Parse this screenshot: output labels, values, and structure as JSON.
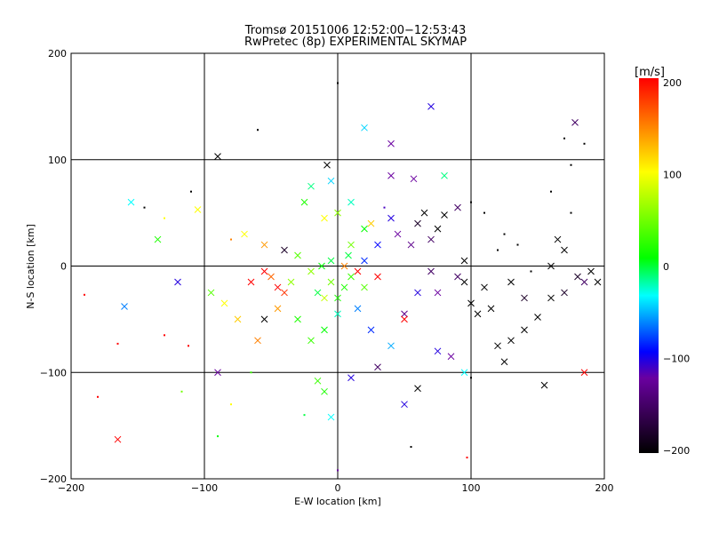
{
  "chart_data": {
    "type": "scatter",
    "title": "Tromsø 20151006 12:52:00−12:53:43",
    "subtitle": "RwPretec (8p) EXPERIMENTAL SKYMAP",
    "xlabel": "E-W location [km]",
    "ylabel": "N-S location [km]",
    "xlim": [
      -200,
      200
    ],
    "ylim": [
      -200,
      200
    ],
    "xticks": [
      "−200",
      "−100",
      "0",
      "100",
      "200"
    ],
    "yticks": [
      "−200",
      "−100",
      "0",
      "100",
      "200"
    ],
    "grid": true,
    "colorbar": {
      "label": "[m/s]",
      "range": [
        -200,
        200
      ],
      "ticks": [
        "200",
        "100",
        "0",
        "−100",
        "−200"
      ],
      "colors": [
        "#000000",
        "#6a00a0",
        "#0000ff",
        "#00ffff",
        "#00ff00",
        "#ffff00",
        "#ff0000"
      ]
    },
    "point_format": "[x_km, y_km, velocity_m_s, marker(1=cross,0=dot)]",
    "points": [
      [
        -165,
        -163,
        200,
        1
      ],
      [
        -160,
        -38,
        -60,
        1
      ],
      [
        -155,
        60,
        -30,
        1
      ],
      [
        -135,
        25,
        20,
        1
      ],
      [
        -120,
        -15,
        -100,
        1
      ],
      [
        -105,
        53,
        100,
        1
      ],
      [
        -90,
        103,
        -200,
        1
      ],
      [
        70,
        150,
        -100,
        1
      ],
      [
        40,
        115,
        -120,
        1
      ],
      [
        20,
        130,
        -40,
        1
      ],
      [
        -60,
        128,
        -200,
        0
      ],
      [
        0,
        172,
        -200,
        0
      ],
      [
        178,
        135,
        -150,
        1
      ],
      [
        185,
        -100,
        200,
        1
      ],
      [
        -190,
        -27,
        200,
        0
      ],
      [
        -180,
        -123,
        200,
        0
      ],
      [
        -165,
        -73,
        200,
        0
      ],
      [
        -130,
        -65,
        200,
        0
      ],
      [
        -112,
        -75,
        200,
        0
      ],
      [
        -117,
        -118,
        50,
        0
      ],
      [
        -80,
        -130,
        100,
        0
      ],
      [
        -90,
        -160,
        10,
        0
      ],
      [
        97,
        -180,
        200,
        0
      ],
      [
        0,
        -192,
        -120,
        0
      ],
      [
        55,
        -170,
        -200,
        0
      ],
      [
        -25,
        -140,
        0,
        0
      ],
      [
        -5,
        -142,
        -30,
        1
      ],
      [
        -10,
        -118,
        20,
        1
      ],
      [
        -15,
        -108,
        30,
        1
      ],
      [
        10,
        -105,
        -100,
        1
      ],
      [
        30,
        -95,
        -150,
        1
      ],
      [
        50,
        -130,
        -100,
        1
      ],
      [
        60,
        -115,
        -200,
        1
      ],
      [
        95,
        -100,
        -30,
        1
      ],
      [
        85,
        -85,
        -120,
        1
      ],
      [
        75,
        -80,
        -100,
        1
      ],
      [
        100,
        -105,
        -200,
        0
      ],
      [
        155,
        -112,
        -200,
        1
      ],
      [
        130,
        -70,
        -200,
        1
      ],
      [
        120,
        -75,
        -200,
        1
      ],
      [
        125,
        -90,
        -200,
        1
      ],
      [
        140,
        -60,
        -200,
        1
      ],
      [
        150,
        -48,
        -200,
        1
      ],
      [
        160,
        -30,
        -200,
        1
      ],
      [
        170,
        -25,
        -180,
        1
      ],
      [
        195,
        -15,
        -200,
        1
      ],
      [
        190,
        -5,
        -200,
        1
      ],
      [
        180,
        -10,
        -180,
        1
      ],
      [
        185,
        -15,
        -150,
        1
      ],
      [
        110,
        -20,
        -200,
        1
      ],
      [
        115,
        -40,
        -200,
        1
      ],
      [
        105,
        -45,
        -200,
        1
      ],
      [
        95,
        -15,
        -200,
        1
      ],
      [
        100,
        -35,
        -200,
        1
      ],
      [
        90,
        -10,
        -150,
        1
      ],
      [
        75,
        -25,
        -120,
        1
      ],
      [
        70,
        -5,
        -150,
        1
      ],
      [
        95,
        5,
        -200,
        1
      ],
      [
        120,
        15,
        -200,
        0
      ],
      [
        135,
        20,
        -200,
        0
      ],
      [
        145,
        -5,
        -200,
        0
      ],
      [
        160,
        0,
        -200,
        1
      ],
      [
        170,
        15,
        -200,
        1
      ],
      [
        175,
        50,
        -200,
        0
      ],
      [
        165,
        25,
        -200,
        1
      ],
      [
        140,
        -30,
        -180,
        1
      ],
      [
        130,
        -15,
        -200,
        1
      ],
      [
        125,
        30,
        -200,
        0
      ],
      [
        110,
        50,
        -200,
        0
      ],
      [
        100,
        60,
        -200,
        0
      ],
      [
        90,
        55,
        -150,
        1
      ],
      [
        80,
        48,
        -200,
        1
      ],
      [
        75,
        35,
        -200,
        1
      ],
      [
        65,
        50,
        -200,
        1
      ],
      [
        60,
        40,
        -180,
        1
      ],
      [
        70,
        25,
        -150,
        1
      ],
      [
        55,
        20,
        -130,
        1
      ],
      [
        45,
        30,
        -120,
        1
      ],
      [
        40,
        45,
        -100,
        1
      ],
      [
        35,
        55,
        -110,
        0
      ],
      [
        30,
        20,
        -90,
        1
      ],
      [
        20,
        5,
        -80,
        1
      ],
      [
        10,
        -10,
        30,
        1
      ],
      [
        5,
        -20,
        20,
        1
      ],
      [
        -5,
        -15,
        50,
        1
      ],
      [
        -10,
        -30,
        80,
        1
      ],
      [
        -20,
        -5,
        60,
        1
      ],
      [
        -30,
        10,
        40,
        1
      ],
      [
        -40,
        15,
        -180,
        1
      ],
      [
        -45,
        -40,
        140,
        1
      ],
      [
        -55,
        -50,
        -200,
        1
      ],
      [
        -60,
        -70,
        150,
        1
      ],
      [
        -75,
        -50,
        120,
        1
      ],
      [
        -85,
        -35,
        100,
        1
      ],
      [
        -95,
        -25,
        40,
        1
      ],
      [
        -80,
        25,
        150,
        0
      ],
      [
        -70,
        30,
        100,
        1
      ],
      [
        -55,
        20,
        140,
        1
      ],
      [
        -50,
        -10,
        160,
        1
      ],
      [
        -40,
        -25,
        180,
        1
      ],
      [
        -30,
        -50,
        20,
        1
      ],
      [
        -20,
        -70,
        30,
        1
      ],
      [
        -10,
        -60,
        10,
        1
      ],
      [
        0,
        -45,
        -20,
        1
      ],
      [
        15,
        -40,
        -60,
        1
      ],
      [
        25,
        -60,
        -80,
        1
      ],
      [
        40,
        -75,
        -50,
        1
      ],
      [
        50,
        -45,
        -130,
        1
      ],
      [
        60,
        -25,
        -100,
        1
      ],
      [
        10,
        20,
        50,
        1
      ],
      [
        20,
        35,
        10,
        1
      ],
      [
        0,
        50,
        60,
        1
      ],
      [
        -10,
        45,
        100,
        1
      ],
      [
        -25,
        60,
        20,
        1
      ],
      [
        -20,
        75,
        -10,
        1
      ],
      [
        -5,
        80,
        -40,
        1
      ],
      [
        10,
        60,
        -20,
        1
      ],
      [
        25,
        40,
        120,
        1
      ],
      [
        30,
        -10,
        200,
        1
      ],
      [
        15,
        -5,
        200,
        1
      ],
      [
        5,
        0,
        150,
        1
      ],
      [
        -5,
        5,
        0,
        1
      ],
      [
        -15,
        -25,
        0,
        1
      ],
      [
        0,
        -30,
        20,
        1
      ],
      [
        8,
        10,
        0,
        1
      ],
      [
        -12,
        0,
        10,
        1
      ],
      [
        20,
        -20,
        40,
        1
      ],
      [
        -35,
        -15,
        60,
        1
      ],
      [
        50,
        -50,
        200,
        1
      ],
      [
        -45,
        -20,
        200,
        1
      ],
      [
        -55,
        -5,
        200,
        1
      ],
      [
        -65,
        -15,
        200,
        1
      ],
      [
        40,
        85,
        -120,
        1
      ],
      [
        80,
        85,
        -10,
        1
      ],
      [
        -8,
        95,
        -200,
        1
      ],
      [
        -90,
        -100,
        -120,
        1
      ],
      [
        -130,
        45,
        100,
        0
      ],
      [
        -145,
        55,
        -200,
        0
      ],
      [
        -110,
        70,
        -200,
        0
      ],
      [
        -65,
        -100,
        30,
        0
      ],
      [
        160,
        70,
        -200,
        0
      ],
      [
        175,
        95,
        -200,
        0
      ],
      [
        185,
        115,
        -200,
        0
      ],
      [
        170,
        120,
        -200,
        0
      ],
      [
        57,
        82,
        -120,
        1
      ]
    ]
  }
}
